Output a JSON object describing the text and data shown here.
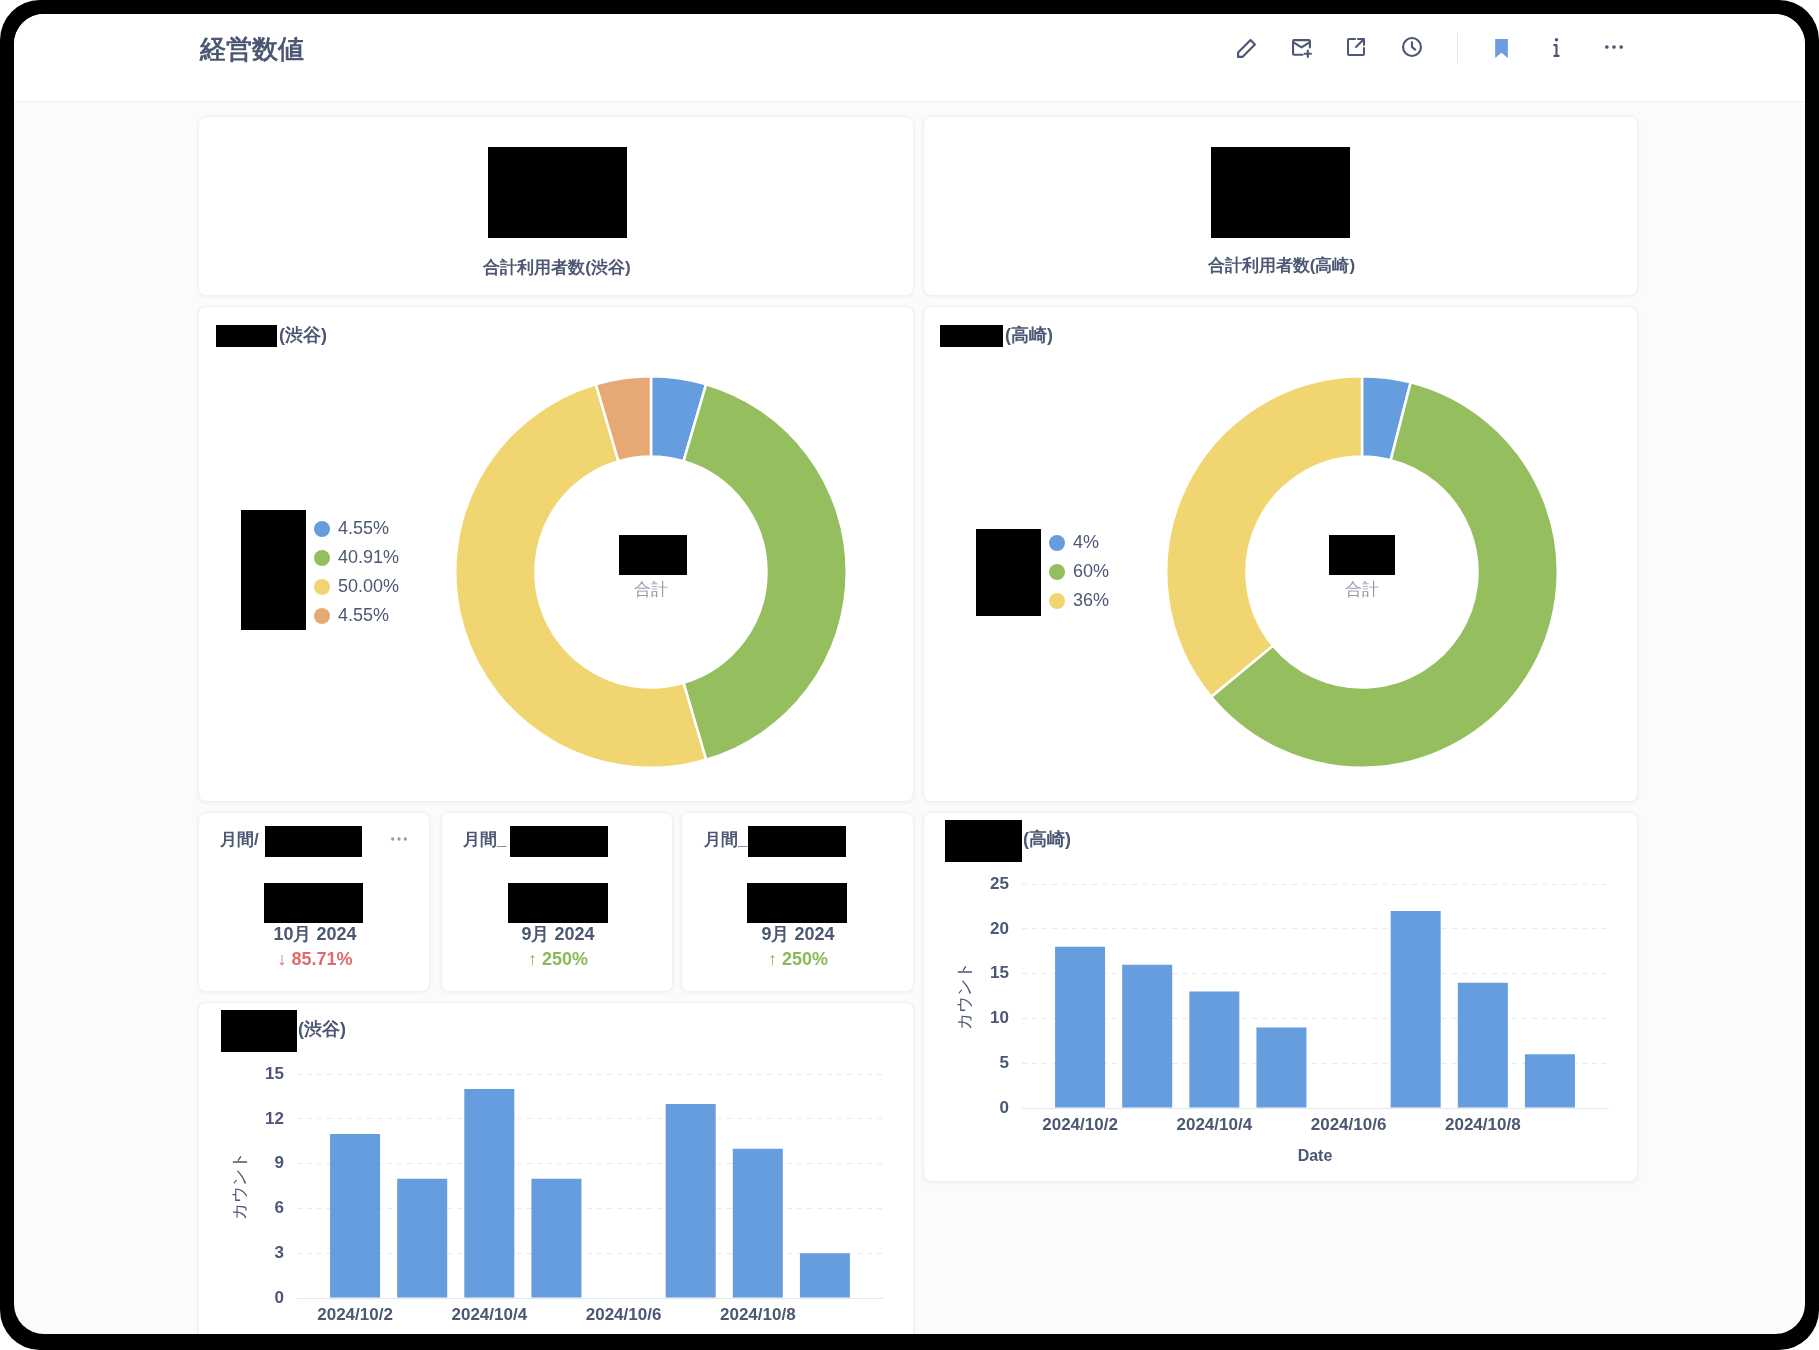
{
  "chart_data": [
    {
      "type": "other",
      "title": "経営数値"
    },
    {
      "type": "other",
      "title": "合計利用者数(渋谷)"
    },
    {
      "type": "other",
      "title": "合計利用者数(高崎)"
    },
    {
      "type": "donut",
      "title": "(渋谷)",
      "categories": [
        "4.55%",
        "40.91%",
        "50.00%",
        "4.55%"
      ],
      "values": [
        4.55,
        40.91,
        50.0,
        4.55
      ],
      "colors": [
        "#669dde",
        "#95be5f",
        "#f1d570",
        "#e6a976"
      ],
      "legend": "left",
      "annotations": [
        "合計"
      ]
    },
    {
      "type": "donut",
      "title": "(高崎)",
      "categories": [
        "4%",
        "60%",
        "36%"
      ],
      "values": [
        4,
        60,
        36
      ],
      "colors": [
        "#669dde",
        "#95be5f",
        "#f1d570"
      ],
      "legend": "left",
      "annotations": [
        "合計"
      ]
    },
    {
      "type": "other",
      "title": "月間/",
      "annotations": [
        "10月 2024",
        "↓ 85.71%"
      ],
      "color": "#e06b6b"
    },
    {
      "type": "other",
      "title": "月間_",
      "annotations": [
        "9月 2024",
        "↑ 250%"
      ],
      "color": "#88bb55"
    },
    {
      "type": "other",
      "title": "月間_",
      "annotations": [
        "9月 2024",
        "↑ 250%"
      ],
      "color": "#88bb55"
    },
    {
      "type": "bar",
      "title": "(高崎)",
      "categories": [
        "2024/10/2",
        null,
        "2024/10/4",
        null,
        "2024/10/6",
        null,
        "2024/10/8",
        null
      ],
      "values": [
        18,
        16,
        13,
        9,
        null,
        22,
        14,
        6
      ],
      "color": "#669dde",
      "xlabel": "Date",
      "ylabel": "カウント",
      "ylim": [
        0,
        25
      ],
      "yticks": [
        0,
        5,
        10,
        15,
        20,
        25
      ],
      "grid": "y"
    },
    {
      "type": "bar",
      "title": "(渋谷)",
      "categories": [
        "2024/10/2",
        null,
        "2024/10/4",
        null,
        "2024/10/6",
        null,
        "2024/10/8",
        null
      ],
      "values": [
        11,
        8,
        14,
        8,
        null,
        13,
        10,
        3
      ],
      "color": "#669dde",
      "ylabel": "カウント",
      "ylim": [
        0,
        15
      ],
      "yticks": [
        0,
        3,
        6,
        9,
        12,
        15
      ],
      "grid": "y"
    }
  ]
}
